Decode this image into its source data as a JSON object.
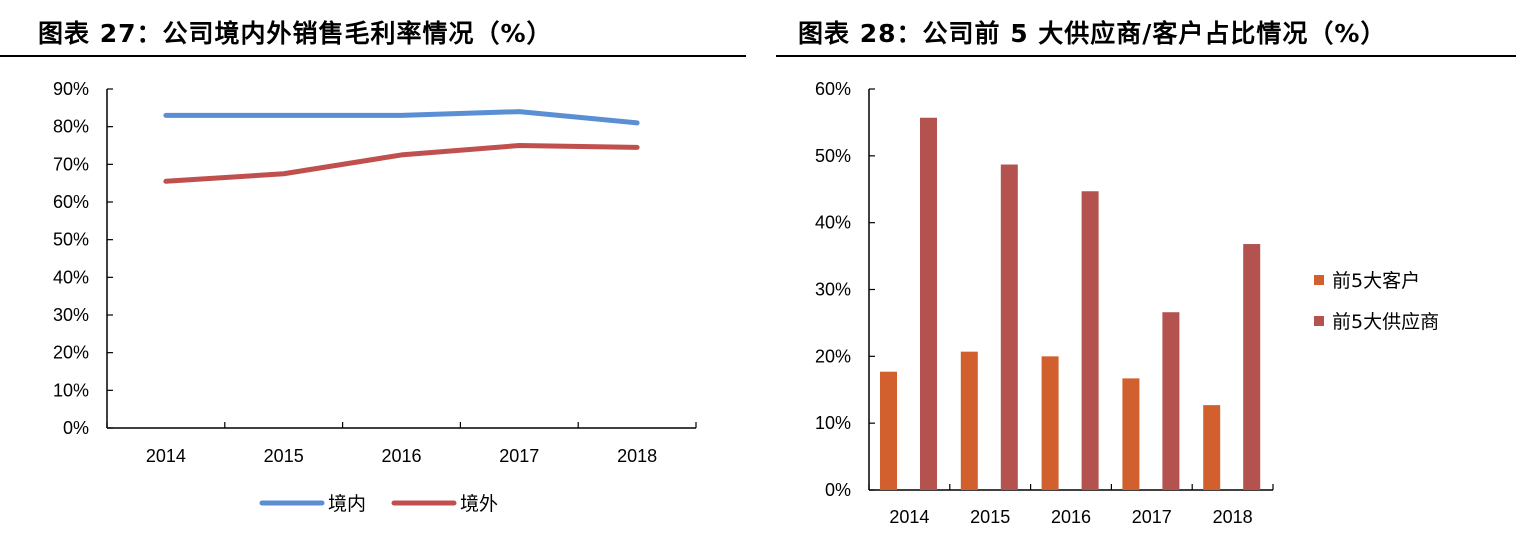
{
  "charts": {
    "left_title": "图表 27：公司境内外销售毛利率情况（%）",
    "right_title": "图表 28：公司前 5 大供应商/客户占比情况（%）"
  },
  "chart_data": [
    {
      "type": "line",
      "title": "图表 27：公司境内外销售毛利率情况（%）",
      "xlabel": "",
      "ylabel": "",
      "categories": [
        "2014",
        "2015",
        "2016",
        "2017",
        "2018"
      ],
      "ylim": [
        0,
        90
      ],
      "yticks": [
        "0%",
        "10%",
        "20%",
        "30%",
        "40%",
        "50%",
        "60%",
        "70%",
        "80%",
        "90%"
      ],
      "grid": false,
      "legend": "bottom",
      "series": [
        {
          "name": "境内",
          "color": "#5B8FD4",
          "values": [
            83,
            83,
            83,
            84,
            81
          ]
        },
        {
          "name": "境外",
          "color": "#C0504D",
          "values": [
            65.5,
            67.5,
            72.5,
            75,
            74.5
          ]
        }
      ]
    },
    {
      "type": "bar",
      "title": "图表 28：公司前 5 大供应商/客户占比情况（%）",
      "xlabel": "",
      "ylabel": "",
      "categories": [
        "2014",
        "2015",
        "2016",
        "2017",
        "2018"
      ],
      "ylim": [
        0,
        60
      ],
      "yticks": [
        "0%",
        "10%",
        "20%",
        "30%",
        "40%",
        "50%",
        "60%"
      ],
      "grid": false,
      "legend": "right",
      "series": [
        {
          "name": "前5大客户",
          "color": "#D2602E",
          "values": [
            17.7,
            20.7,
            20,
            16.7,
            12.7
          ]
        },
        {
          "name": "前5大供应商",
          "color": "#B3524E",
          "values": [
            55.7,
            48.7,
            44.7,
            26.6,
            36.8
          ]
        }
      ]
    }
  ]
}
